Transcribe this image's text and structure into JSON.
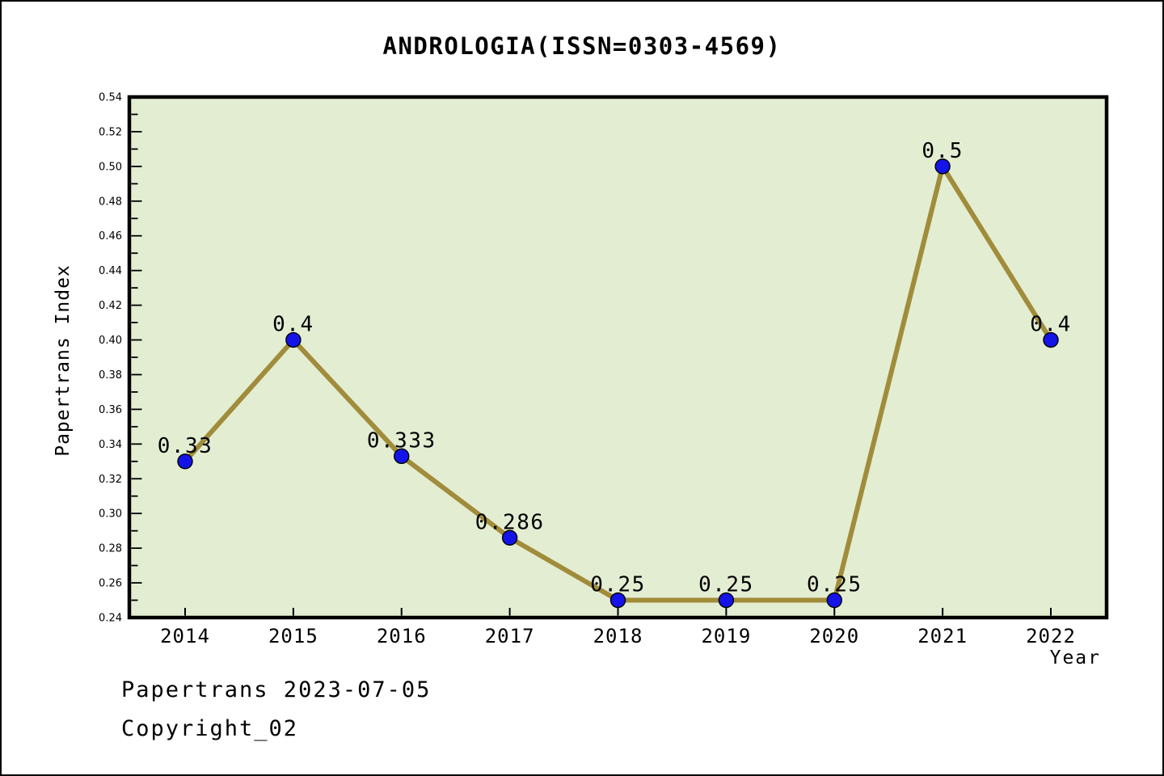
{
  "title": "ANDROLOGIA(ISSN=0303-4569)",
  "footer": {
    "line1": "Papertrans 2023-07-05",
    "line2": "Copyright_02"
  },
  "chart_data": {
    "type": "line",
    "title": "ANDROLOGIA(ISSN=0303-4569)",
    "xlabel": "Year",
    "ylabel": "Papertrans Index",
    "categories": [
      2014,
      2015,
      2016,
      2017,
      2018,
      2019,
      2020,
      2021,
      2022
    ],
    "series": [
      {
        "name": "Papertrans Index",
        "values": [
          0.33,
          0.4,
          0.333,
          0.286,
          0.25,
          0.25,
          0.25,
          0.5,
          0.4
        ],
        "point_labels": [
          "0.33",
          "0.4",
          "0.333",
          "0.286",
          "0.25",
          "0.25",
          "0.25",
          "0.5",
          "0.4"
        ]
      }
    ],
    "ylim": [
      0.24,
      0.54
    ],
    "ytick_step": 0.02,
    "yminor_step": 0.01,
    "grid": false,
    "legend": "none",
    "colors": {
      "line": "#a08c3a",
      "marker_fill": "#1414e8",
      "marker_edge": "#000000",
      "plot_bg": "#e3edd2",
      "axis": "#000000",
      "text": "#000000"
    }
  }
}
